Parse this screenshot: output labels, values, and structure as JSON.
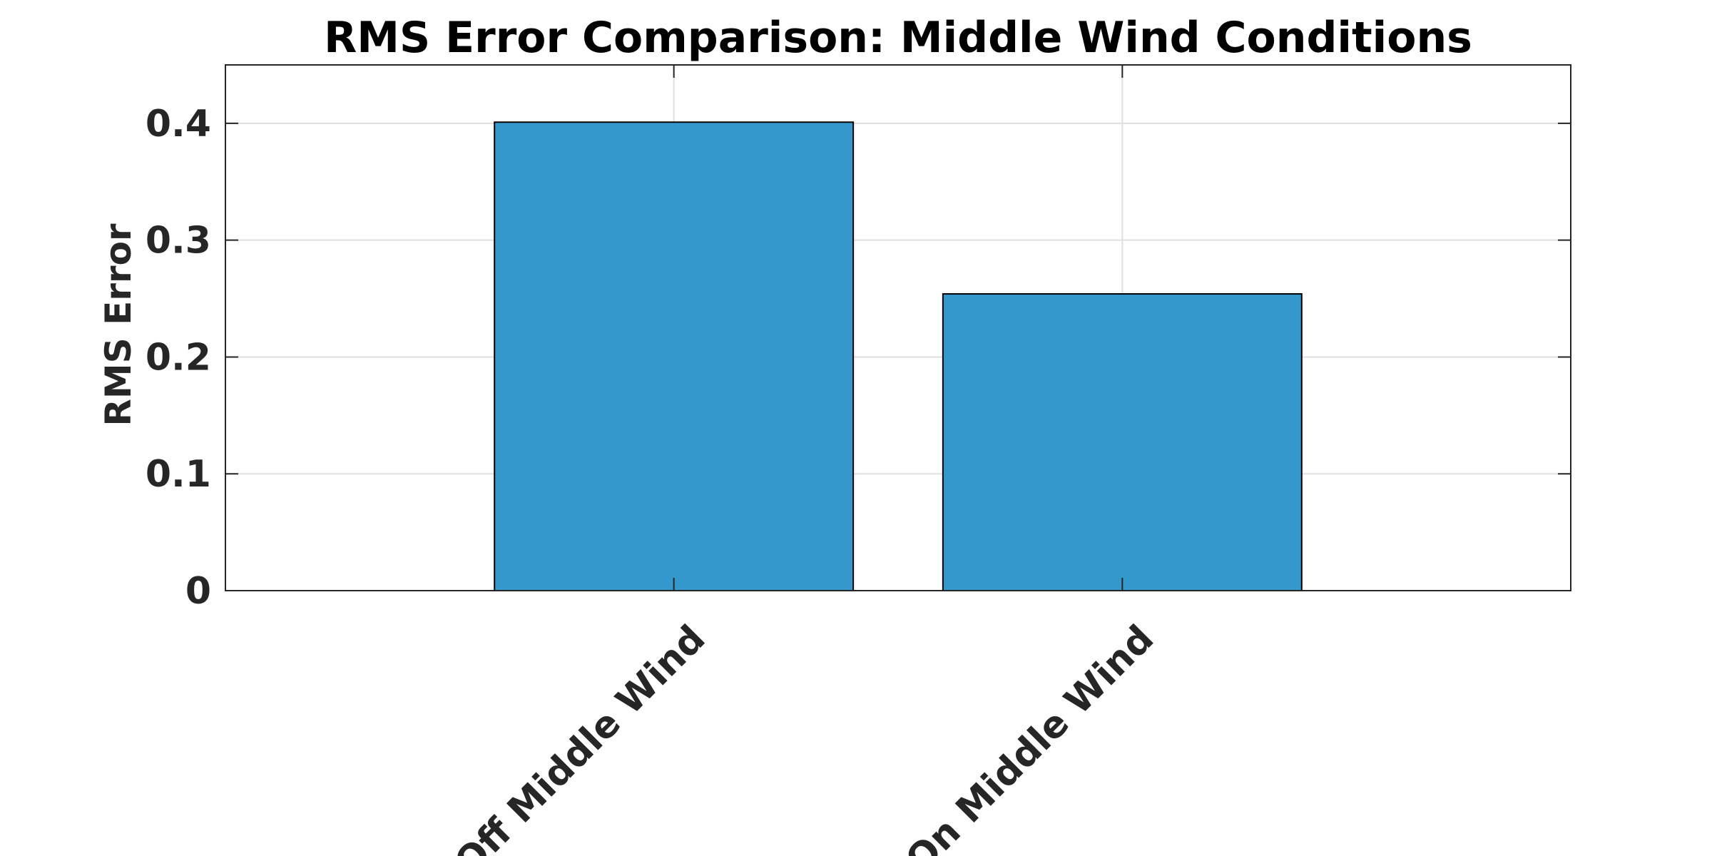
{
  "chart_data": {
    "type": "bar",
    "title": "RMS Error Comparison: Middle Wind Conditions",
    "xlabel": "",
    "ylabel": "RMS Error",
    "categories": [
      "Off Middle Wind",
      "On Middle Wind"
    ],
    "values": [
      0.401,
      0.254
    ],
    "ylim": [
      0,
      0.45
    ],
    "yticks": [
      0,
      0.1,
      0.2,
      0.3,
      0.4
    ],
    "ytick_labels": [
      "0",
      "0.1",
      "0.2",
      "0.3",
      "0.4"
    ],
    "grid": true,
    "bar_color": "#3498cc"
  }
}
